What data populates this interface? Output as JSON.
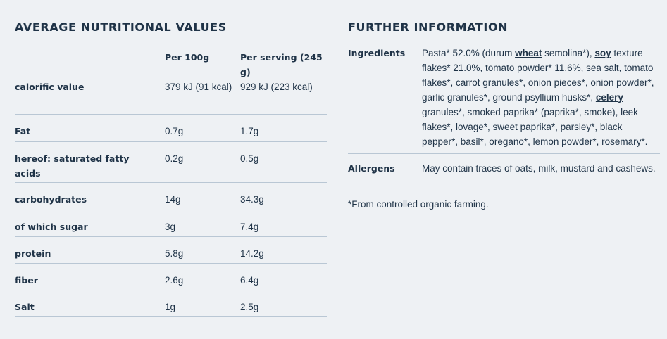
{
  "nutrition": {
    "title": "AVERAGE NUTRITIONAL VALUES",
    "header": {
      "label": "",
      "per100": "Per 100g",
      "perServing": "Per serving (245 g)"
    },
    "rows": [
      {
        "label": "calorific value",
        "per100": "379 kJ (91 kcal)",
        "perServing": "929 kJ (223 kcal)"
      },
      {
        "label": "Fat",
        "per100": "0.7g",
        "perServing": "1.7g"
      },
      {
        "label": "hereof: saturated fatty acids",
        "per100": "0.2g",
        "perServing": "0.5g"
      },
      {
        "label": "carbohydrates",
        "per100": "14g",
        "perServing": "34.3g"
      },
      {
        "label": "of which sugar",
        "per100": "3g",
        "perServing": "7.4g"
      },
      {
        "label": "protein",
        "per100": "5.8g",
        "perServing": "14.2g"
      },
      {
        "label": "fiber",
        "per100": "2.6g",
        "perServing": "6.4g"
      },
      {
        "label": "Salt",
        "per100": "1g",
        "perServing": "2.5g"
      }
    ]
  },
  "further": {
    "title": "FURTHER INFORMATION",
    "ingredients": {
      "label": "Ingredients",
      "parts": [
        "Pasta* 52.0% (durum ",
        "wheat",
        " semolina*), ",
        "soy",
        " texture flakes* 21.0%, tomato powder* 11.6%, sea salt, tomato flakes*, carrot granules*, onion pieces*, onion powder*, garlic granules*, ground psyllium husks*, ",
        "celery",
        " granules*, smoked paprika* (paprika*, smoke), leek flakes*, lovage*, sweet paprika*, parsley*, black pepper*, basil*, oregano*, lemon powder*, rosemary*."
      ]
    },
    "allergens": {
      "label": "Allergens",
      "value": "May contain traces of oats, milk, mustard and cashews."
    },
    "footnote": "*From controlled organic farming."
  }
}
